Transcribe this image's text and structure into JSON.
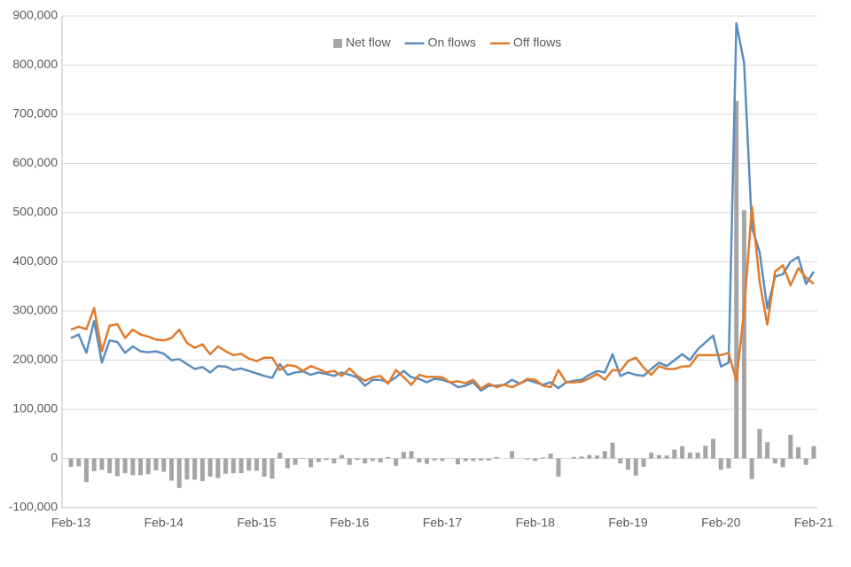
{
  "chart_data": {
    "type": "bar_line",
    "categories": [
      "Feb-13",
      null,
      null,
      null,
      null,
      null,
      null,
      null,
      null,
      null,
      null,
      null,
      "Feb-14",
      null,
      null,
      null,
      null,
      null,
      null,
      null,
      null,
      null,
      null,
      null,
      "Feb-15",
      null,
      null,
      null,
      null,
      null,
      null,
      null,
      null,
      null,
      null,
      null,
      "Feb-16",
      null,
      null,
      null,
      null,
      null,
      null,
      null,
      null,
      null,
      null,
      null,
      "Feb-17",
      null,
      null,
      null,
      null,
      null,
      null,
      null,
      null,
      null,
      null,
      null,
      "Feb-18",
      null,
      null,
      null,
      null,
      null,
      null,
      null,
      null,
      null,
      null,
      null,
      "Feb-19",
      null,
      null,
      null,
      null,
      null,
      null,
      null,
      null,
      null,
      null,
      null,
      "Feb-20",
      null,
      null,
      null,
      null,
      null,
      null,
      null,
      null,
      null,
      null,
      null,
      "Feb-21"
    ],
    "series": [
      {
        "name": "Net flow",
        "type": "bar",
        "color": "#a5a5a5",
        "values": [
          -17000,
          -16000,
          -48000,
          -26000,
          -23000,
          -30000,
          -36000,
          -30000,
          -34000,
          -34000,
          -32000,
          -24000,
          -27000,
          -45000,
          -60000,
          -43000,
          -43000,
          -46000,
          -37000,
          -40000,
          -31000,
          -30000,
          -30000,
          -25000,
          -25000,
          -37000,
          -41000,
          12000,
          -20000,
          -13000,
          -1000,
          -18000,
          -7000,
          -3000,
          -10000,
          7000,
          -13000,
          -3000,
          -10000,
          -5000,
          -8000,
          3000,
          -15000,
          13000,
          15000,
          -8000,
          -11000,
          -4000,
          -5000,
          0,
          -12000,
          -5000,
          -5000,
          -4000,
          -4000,
          3000,
          0,
          15000,
          0,
          -2000,
          -5000,
          2000,
          10000,
          -37000,
          0,
          3000,
          4000,
          7000,
          6000,
          15000,
          32000,
          -10000,
          -23000,
          -35000,
          -17000,
          12000,
          7000,
          6000,
          18000,
          25000,
          12000,
          12000,
          26000,
          40000,
          -23000,
          -20000,
          727000,
          505000,
          -42000,
          60000,
          33000,
          -10000,
          -18000,
          48000,
          23000,
          -13000,
          25000
        ]
      },
      {
        "name": "On flows",
        "type": "line",
        "color": "#5b8ebf",
        "values": [
          245000,
          252000,
          215000,
          280000,
          195000,
          240000,
          237000,
          215000,
          228000,
          218000,
          216000,
          218000,
          213000,
          200000,
          202000,
          192000,
          182000,
          186000,
          175000,
          188000,
          187000,
          180000,
          183000,
          178000,
          173000,
          168000,
          164000,
          192000,
          170000,
          175000,
          177000,
          170000,
          175000,
          172000,
          168000,
          175000,
          170000,
          165000,
          148000,
          160000,
          160000,
          155000,
          165000,
          178000,
          165000,
          162000,
          155000,
          162000,
          160000,
          155000,
          145000,
          148000,
          155000,
          138000,
          148000,
          148000,
          150000,
          160000,
          152000,
          160000,
          155000,
          150000,
          155000,
          143000,
          155000,
          158000,
          160000,
          170000,
          178000,
          175000,
          212000,
          168000,
          175000,
          170000,
          168000,
          182000,
          195000,
          188000,
          200000,
          212000,
          200000,
          222000,
          236000,
          250000,
          187000,
          195000,
          885000,
          805000,
          470000,
          420000,
          305000,
          370000,
          375000,
          400000,
          410000,
          355000,
          380000
        ]
      },
      {
        "name": "Off flows",
        "type": "line",
        "color": "#e07b2d",
        "values": [
          262000,
          268000,
          263000,
          306000,
          218000,
          270000,
          273000,
          245000,
          262000,
          252000,
          248000,
          242000,
          240000,
          245000,
          262000,
          235000,
          225000,
          232000,
          212000,
          228000,
          218000,
          210000,
          213000,
          203000,
          198000,
          205000,
          205000,
          180000,
          190000,
          188000,
          178000,
          188000,
          182000,
          175000,
          178000,
          168000,
          183000,
          168000,
          158000,
          165000,
          168000,
          152000,
          180000,
          165000,
          150000,
          170000,
          166000,
          166000,
          165000,
          155000,
          157000,
          153000,
          160000,
          142000,
          152000,
          145000,
          150000,
          145000,
          152000,
          162000,
          160000,
          148000,
          145000,
          180000,
          155000,
          155000,
          156000,
          163000,
          172000,
          160000,
          180000,
          178000,
          198000,
          205000,
          185000,
          170000,
          188000,
          182000,
          182000,
          187000,
          188000,
          210000,
          210000,
          210000,
          210000,
          215000,
          158000,
          300000,
          512000,
          360000,
          272000,
          380000,
          393000,
          352000,
          387000,
          368000,
          355000
        ]
      }
    ],
    "ylim": [
      -100000,
      900000
    ],
    "yticks": [
      {
        "value": -100000,
        "label": "-100,000"
      },
      0,
      {
        "value": 100000,
        "label": "100,000"
      },
      {
        "value": 200000,
        "label": "200,000"
      },
      {
        "value": 300000,
        "label": "300,000"
      },
      {
        "value": 400000,
        "label": "400,000"
      },
      {
        "value": 500000,
        "label": "500,000"
      },
      {
        "value": 600000,
        "label": "600,000"
      },
      {
        "value": 700000,
        "label": "700,000"
      },
      {
        "value": 800000,
        "label": "800,000"
      },
      {
        "value": 900000,
        "label": "900,000"
      }
    ],
    "grid": true,
    "legend": "top"
  }
}
